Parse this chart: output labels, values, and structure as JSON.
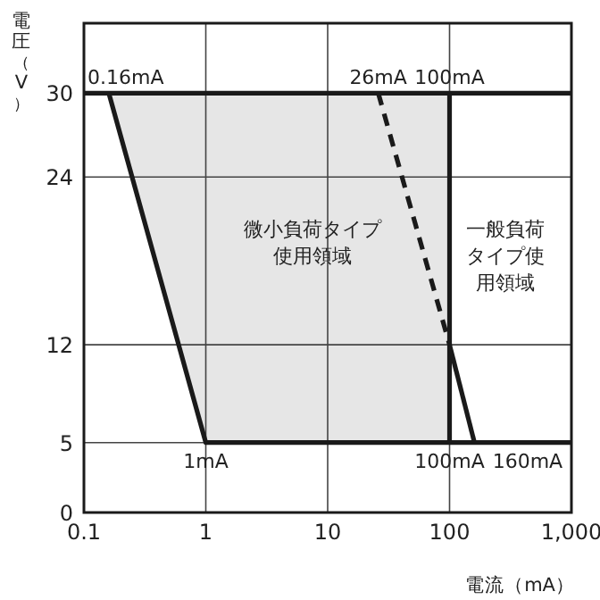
{
  "chart_data": {
    "type": "line",
    "xlabel": "電流（mA）",
    "ylabel": "電圧（V）",
    "log": "x",
    "xlim": [
      0.1,
      1000
    ],
    "ylim": [
      0,
      35
    ],
    "xticks": [
      0.1,
      1,
      10,
      100,
      {
        "value": 1000,
        "label": "1,000"
      }
    ],
    "yticks": [
      0,
      5,
      12,
      24,
      30
    ],
    "grid": true,
    "marker": "none",
    "series": [
      {
        "type": "area",
        "color": "#e6e6e6",
        "x": [
          0.16,
          1,
          100,
          100
        ],
        "values": [
          30,
          5,
          5,
          30
        ]
      },
      {
        "color": "#1a1a1a",
        "x": [
          0.1,
          1000
        ],
        "values": [
          30,
          30
        ]
      },
      {
        "color": "#1a1a1a",
        "x": [
          0.16,
          1,
          1000
        ],
        "values": [
          30,
          5,
          5
        ]
      },
      {
        "color": "#1a1a1a",
        "x": [
          100,
          100
        ],
        "values": [
          30,
          5
        ]
      },
      {
        "color": "#1a1a1a",
        "x": [
          100,
          160
        ],
        "values": [
          12,
          5
        ]
      },
      {
        "color": "#1a1a1a",
        "line_style": "dashed",
        "x": [
          26,
          100
        ],
        "values": [
          30,
          12
        ]
      }
    ],
    "annotations": [
      {
        "text": "0.16mA",
        "x": 0.16,
        "y": 30
      },
      {
        "text": "26mA",
        "x": 26,
        "y": 30
      },
      {
        "text": "100mA",
        "x": 100,
        "y": 30
      },
      {
        "text": "1mA",
        "x": 1,
        "y": 5
      },
      {
        "text": "100mA",
        "x": 100,
        "y": 5
      },
      {
        "text": "160mA",
        "x": 160,
        "y": 5
      },
      "微小負荷タイプ使用領域",
      "一般負荷タイプ使用領域"
    ]
  }
}
